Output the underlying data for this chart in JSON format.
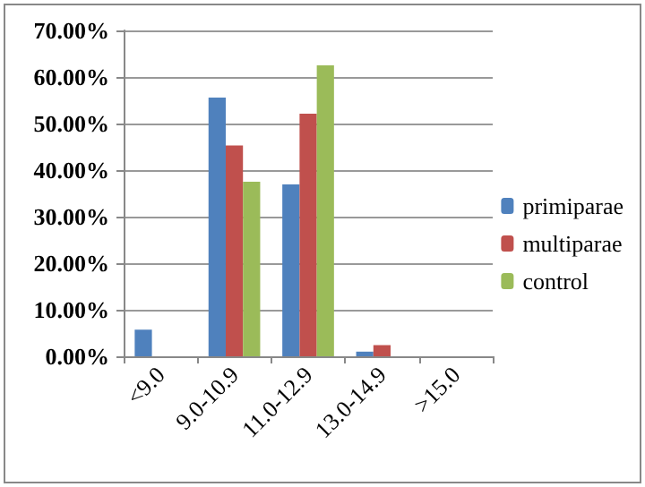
{
  "chart_data": {
    "type": "bar",
    "categories": [
      "<9.0",
      "9.0-10.9",
      "11.0-12.9",
      "13.0-14.9",
      ">15.0"
    ],
    "series": [
      {
        "name": "primiparae",
        "color": "#4f81bd",
        "values": [
          5.7,
          55.6,
          36.9,
          1.0,
          0
        ]
      },
      {
        "name": "multiparae",
        "color": "#c0504d",
        "values": [
          0,
          45.3,
          52.1,
          2.4,
          0
        ]
      },
      {
        "name": "control",
        "color": "#9bbb59",
        "values": [
          0,
          37.5,
          62.5,
          0,
          0
        ]
      }
    ],
    "ylim": [
      0,
      70
    ],
    "yticks": [
      {
        "value": 0,
        "label": "0.00%"
      },
      {
        "value": 10,
        "label": "10.00%"
      },
      {
        "value": 20,
        "label": "20.00%"
      },
      {
        "value": 30,
        "label": "30.00%"
      },
      {
        "value": 40,
        "label": "40.00%"
      },
      {
        "value": 50,
        "label": "50.00%"
      },
      {
        "value": 60,
        "label": "60.00%"
      },
      {
        "value": 70,
        "label": "70.00%"
      }
    ],
    "grid": "y",
    "legend": "right"
  }
}
